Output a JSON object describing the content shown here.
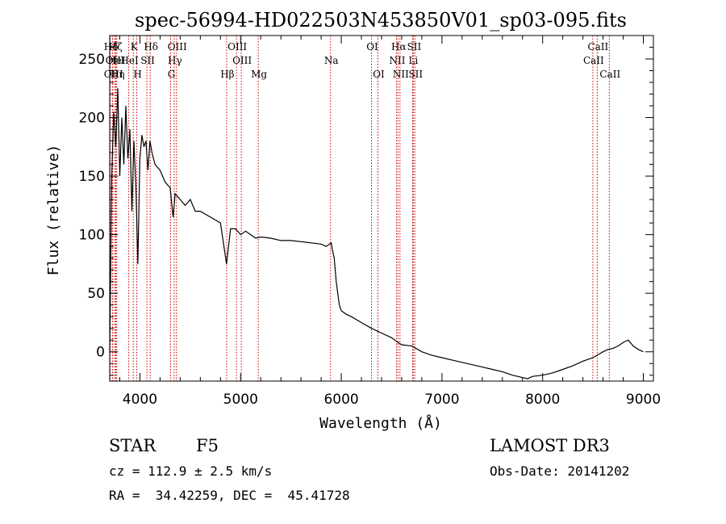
{
  "chart_data": {
    "type": "line",
    "title": "spec-56994-HD022503N453850V01_sp03-095.fits",
    "xlabel": "Wavelength (Å)",
    "ylabel": "Flux (relative)",
    "xlim": [
      3700,
      9100
    ],
    "ylim": [
      -25,
      270
    ],
    "xticks": [
      4000,
      5000,
      6000,
      7000,
      8000,
      9000
    ],
    "yticks": [
      0,
      50,
      100,
      150,
      200,
      250
    ],
    "grid": false,
    "series": [
      {
        "x": [
          3700,
          3720,
          3740,
          3760,
          3780,
          3800,
          3820,
          3840,
          3860,
          3880,
          3900,
          3920,
          3940,
          3960,
          3980,
          4000,
          4020,
          4040,
          4060,
          4080,
          4100,
          4120,
          4150,
          4200,
          4250,
          4300,
          4330,
          4350,
          4400,
          4450,
          4500,
          4550,
          4600,
          4700,
          4800,
          4860,
          4900,
          4950,
          5000,
          5050,
          5100,
          5150,
          5200,
          5300,
          5400,
          5500,
          5600,
          5700,
          5800,
          5850,
          5900,
          5910,
          5930,
          5950,
          5980,
          6000,
          6050,
          6100,
          6200,
          6300,
          6400,
          6500,
          6563,
          6600,
          6700,
          6800,
          6900,
          7000,
          7100,
          7200,
          7300,
          7400,
          7500,
          7600,
          7700,
          7800,
          7850,
          7900,
          8000,
          8100,
          8200,
          8300,
          8400,
          8500,
          8600,
          8650,
          8700,
          8750,
          8800,
          8850,
          8900,
          8950,
          9000
        ],
        "y": [
          0,
          150,
          205,
          175,
          225,
          150,
          200,
          160,
          210,
          165,
          190,
          120,
          180,
          140,
          75,
          165,
          185,
          175,
          180,
          155,
          180,
          170,
          160,
          155,
          145,
          140,
          115,
          135,
          130,
          125,
          130,
          120,
          120,
          115,
          110,
          75,
          105,
          105,
          100,
          103,
          100,
          97,
          98,
          97,
          95,
          95,
          94,
          93,
          92,
          90,
          93,
          88,
          80,
          60,
          40,
          35,
          32,
          30,
          25,
          20,
          16,
          12,
          8,
          6,
          5,
          0,
          -3,
          -5,
          -7,
          -9,
          -11,
          -13,
          -15,
          -17,
          -20,
          -22,
          -23,
          -21,
          -20,
          -18,
          -15,
          -12,
          -8,
          -5,
          0,
          2,
          3,
          5,
          8,
          10,
          5,
          2,
          0
        ]
      }
    ],
    "spectral_lines": [
      {
        "name": "Hδ",
        "wl": 3705,
        "row": 1
      },
      {
        "name": "OII",
        "wl": 3727,
        "row": 2
      },
      {
        "name": "OIII",
        "wl": 3730,
        "row": 3
      },
      {
        "name": "Hζ",
        "wl": 3750,
        "row": 1
      },
      {
        "name": "HeI",
        "wl": 3760,
        "row": 2
      },
      {
        "name": "Hη",
        "wl": 3770,
        "row": 3
      },
      {
        "name": "K",
        "wl": 3934,
        "row": 1
      },
      {
        "name": "HeI",
        "wl": 3889,
        "row": 2
      },
      {
        "name": "SII",
        "wl": 4069,
        "row": 2
      },
      {
        "name": "H",
        "wl": 3969,
        "row": 3
      },
      {
        "name": "Hδ",
        "wl": 4102,
        "row": 1
      },
      {
        "name": "OIII",
        "wl": 4363,
        "row": 1
      },
      {
        "name": "Hγ",
        "wl": 4340,
        "row": 2
      },
      {
        "name": "G",
        "wl": 4305,
        "row": 3
      },
      {
        "name": "Hβ",
        "wl": 4861,
        "row": 3
      },
      {
        "name": "OIII",
        "wl": 4959,
        "row": 1
      },
      {
        "name": "OIII",
        "wl": 5007,
        "row": 2
      },
      {
        "name": "Mg",
        "wl": 5175,
        "row": 3
      },
      {
        "name": "Na",
        "wl": 5893,
        "row": 2
      },
      {
        "name": "OI",
        "wl": 6300,
        "row": 1
      },
      {
        "name": "OI",
        "wl": 6364,
        "row": 3
      },
      {
        "name": "Hα",
        "wl": 6563,
        "row": 1
      },
      {
        "name": "NII",
        "wl": 6548,
        "row": 2
      },
      {
        "name": "NII",
        "wl": 6583,
        "row": 3
      },
      {
        "name": "SII",
        "wl": 6716,
        "row": 1
      },
      {
        "name": "Li",
        "wl": 6708,
        "row": 2
      },
      {
        "name": "SII",
        "wl": 6731,
        "row": 3
      },
      {
        "name": "CaII",
        "wl": 8542,
        "row": 1
      },
      {
        "name": "CaII",
        "wl": 8498,
        "row": 2
      },
      {
        "name": "CaII",
        "wl": 8662,
        "row": 3
      }
    ],
    "line_color": "#cc0000",
    "spectrum_color": "#000000"
  },
  "info": {
    "obj_class": "STAR",
    "subclass": "F5",
    "survey": "LAMOST DR3",
    "cz": "cz = 112.9 ± 2.5 km/s",
    "obs_date": "Obs-Date: 20141202",
    "radec": "RA =  34.42259, DEC =  45.41728"
  }
}
